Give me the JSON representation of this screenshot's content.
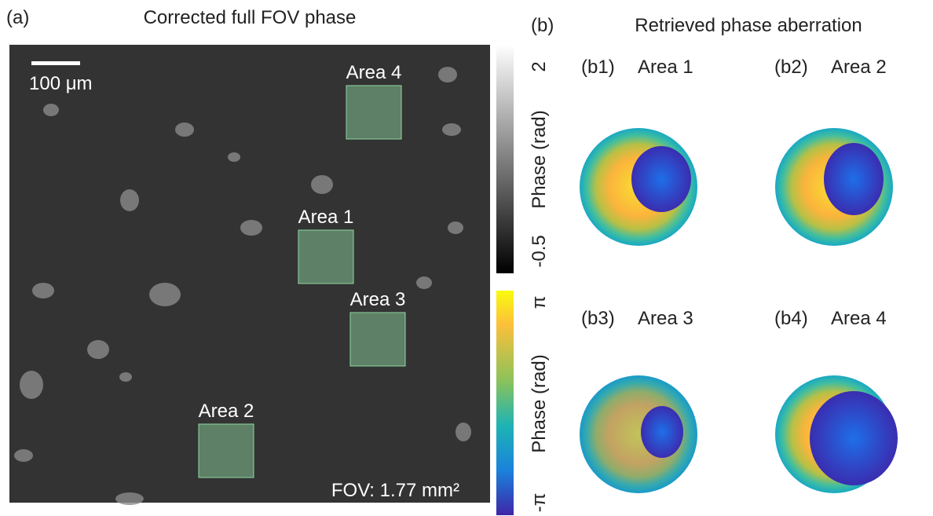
{
  "panel_a": {
    "label": "(a)",
    "title": "Corrected full FOV phase",
    "scale_bar": "100 μm",
    "areas": [
      "Area 4",
      "Area 1",
      "Area 3",
      "Area 2"
    ],
    "fov": "FOV: 1.77 mm²"
  },
  "colorbar_gray": {
    "max_label": "2",
    "axis_label": "Phase (rad)",
    "min_label": "-0.5"
  },
  "colorbar_parula": {
    "max_label": "π",
    "axis_label": "Phase (rad)",
    "min_label": "-π"
  },
  "panel_b": {
    "label": "(b)",
    "title": "Retrieved phase aberration",
    "subpanels": [
      {
        "tag": "(b1)",
        "name": "Area 1"
      },
      {
        "tag": "(b2)",
        "name": "Area 2"
      },
      {
        "tag": "(b3)",
        "name": "Area 3"
      },
      {
        "tag": "(b4)",
        "name": "Area 4"
      }
    ]
  }
}
